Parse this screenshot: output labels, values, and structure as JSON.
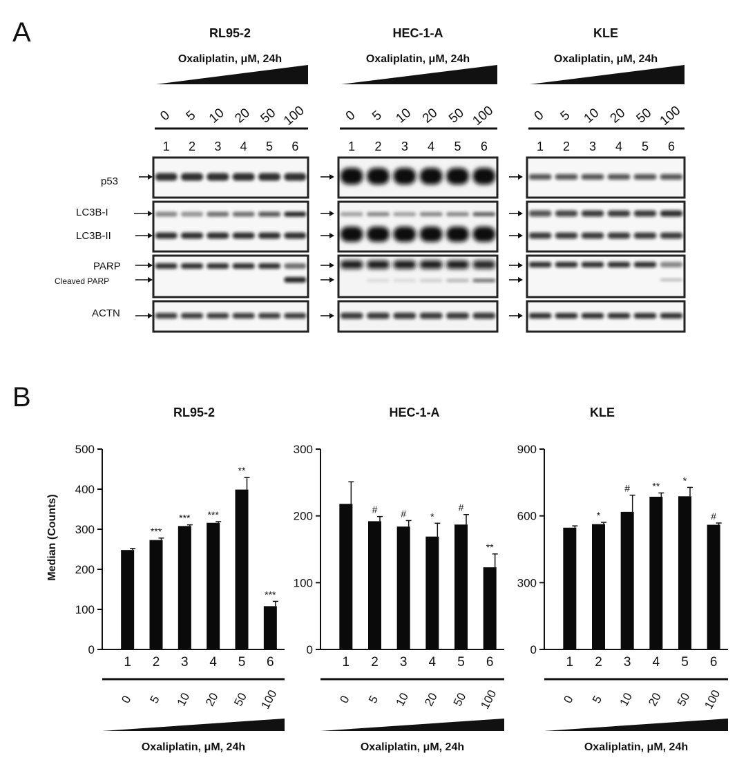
{
  "panel_a": {
    "label": "A",
    "lane_numbers": [
      "1",
      "2",
      "3",
      "4",
      "5",
      "6"
    ],
    "doses": [
      "0",
      "5",
      "10",
      "20",
      "50",
      "100"
    ],
    "treatment": "Oxaliplatin, μM, 24h",
    "row_labels": {
      "p53": "p53",
      "lc3b_i": "LC3B-I",
      "lc3b_ii": "LC3B-II",
      "parp": "PARP",
      "cleaved_parp": "Cleaved PARP",
      "actn": "ACTN"
    },
    "cell_lines": [
      "RL95-2",
      "HEC-1-A",
      "KLE"
    ]
  },
  "panel_b": {
    "label": "B",
    "ylabel": "Median (Counts)",
    "treatment": "Oxaliplatin, μM, 24h"
  },
  "chart_data": [
    {
      "type": "bar",
      "title": "RL95-2",
      "ylabel": "Median (Counts)",
      "xlabel": "Oxaliplatin, μM, 24h",
      "categories": [
        "1",
        "2",
        "3",
        "4",
        "5",
        "6"
      ],
      "doses": [
        "0",
        "5",
        "10",
        "20",
        "50",
        "100"
      ],
      "values": [
        248,
        273,
        308,
        316,
        399,
        108
      ],
      "errors": [
        4,
        5,
        3,
        3,
        30,
        12
      ],
      "significance": [
        "",
        "***",
        "***",
        "***",
        "**",
        "***"
      ],
      "ylim": [
        0,
        500
      ],
      "yticks": [
        0,
        100,
        200,
        300,
        400,
        500
      ]
    },
    {
      "type": "bar",
      "title": "HEC-1-A",
      "xlabel": "Oxaliplatin, μM, 24h",
      "categories": [
        "1",
        "2",
        "3",
        "4",
        "5",
        "6"
      ],
      "doses": [
        "0",
        "5",
        "10",
        "20",
        "50",
        "100"
      ],
      "values": [
        218,
        192,
        184,
        169,
        187,
        123
      ],
      "errors": [
        33,
        7,
        9,
        20,
        15,
        20
      ],
      "significance": [
        "",
        "#",
        "#",
        "*",
        "#",
        "**"
      ],
      "ylim": [
        0,
        300
      ],
      "yticks": [
        0,
        100,
        200,
        300
      ]
    },
    {
      "type": "bar",
      "title": "KLE",
      "xlabel": "Oxaliplatin, μM, 24h",
      "categories": [
        "1",
        "2",
        "3",
        "4",
        "5",
        "6"
      ],
      "doses": [
        "0",
        "5",
        "10",
        "20",
        "50",
        "100"
      ],
      "values": [
        547,
        563,
        618,
        686,
        688,
        560
      ],
      "errors": [
        8,
        8,
        75,
        17,
        40,
        8
      ],
      "significance": [
        "",
        "*",
        "#",
        "**",
        "*",
        "#"
      ],
      "ylim": [
        0,
        900
      ],
      "yticks": [
        0,
        300,
        600,
        900
      ]
    }
  ]
}
